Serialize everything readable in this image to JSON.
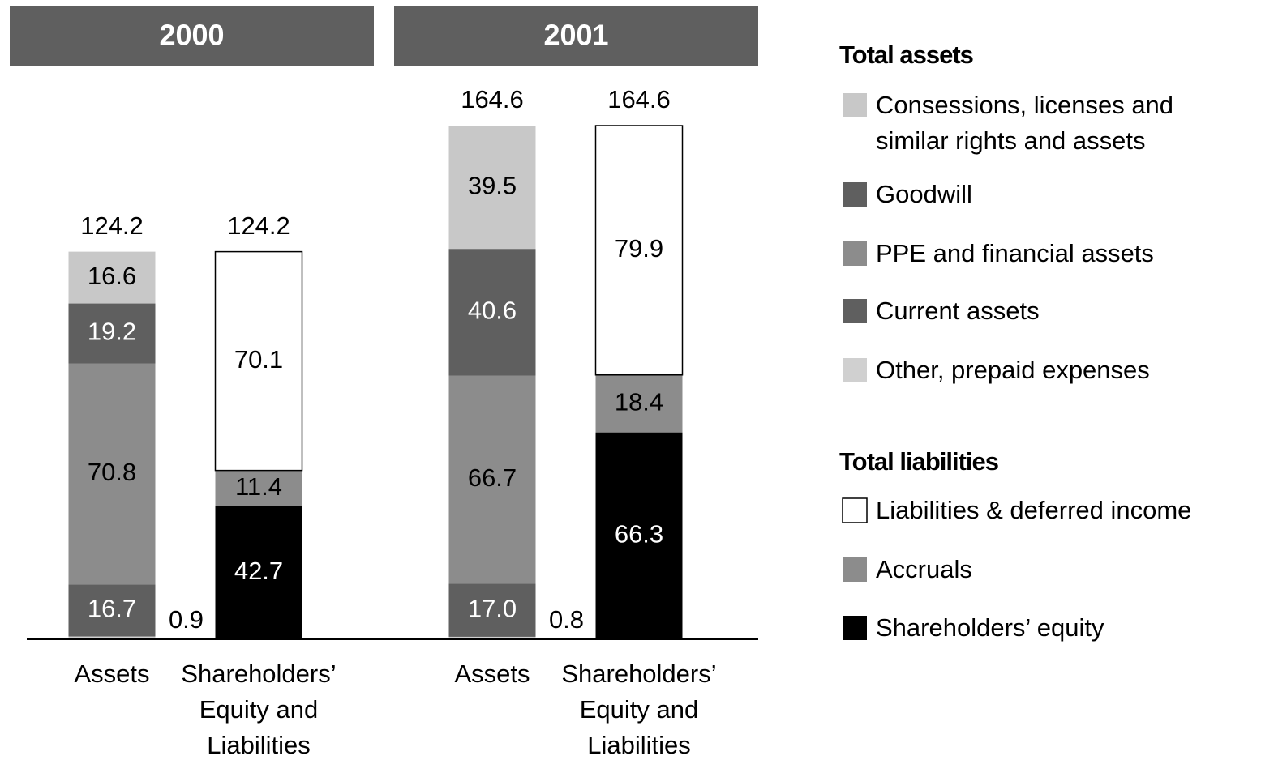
{
  "chart_data": {
    "type": "stacked_bar",
    "groups": [
      "2000",
      "2001"
    ],
    "categories": [
      "Assets",
      "Shareholders’ Equity and Liabilities",
      "Assets",
      "Shareholders’ Equity and Liabilities"
    ],
    "totals": [
      124.2,
      124.2,
      164.6,
      164.6
    ],
    "legend_groups": [
      {
        "title": "Total assets",
        "series": [
          {
            "name": "Consessions, licenses and similar rights and assets",
            "color": "#c8c8c8",
            "values": [
              16.6,
              null,
              39.5,
              null
            ]
          },
          {
            "name": "Goodwill",
            "color": "#5f5f5f",
            "values": [
              19.2,
              null,
              40.6,
              null
            ]
          },
          {
            "name": "PPE and financial assets",
            "color": "#8c8c8c",
            "values": [
              70.8,
              null,
              66.7,
              null
            ]
          },
          {
            "name": "Current assets",
            "color": "#5f5f5f",
            "values": [
              16.7,
              null,
              17.0,
              null
            ],
            "value_labels": [
              "16.7",
              null,
              "17.0",
              null
            ]
          },
          {
            "name": "Other, prepaid expenses",
            "color": "#d0d0d0",
            "values": [
              0.9,
              null,
              0.8,
              null
            ]
          }
        ]
      },
      {
        "title": "Total liabilities",
        "series": [
          {
            "name": "Liabilities & deferred income",
            "color": "#ffffff",
            "values": [
              null,
              70.1,
              null,
              79.9
            ]
          },
          {
            "name": "Accruals",
            "color": "#8c8c8c",
            "values": [
              null,
              11.4,
              null,
              18.4
            ]
          },
          {
            "name": "Shareholders’ equity",
            "color": "#000000",
            "values": [
              null,
              42.7,
              null,
              66.3
            ]
          }
        ]
      }
    ]
  }
}
